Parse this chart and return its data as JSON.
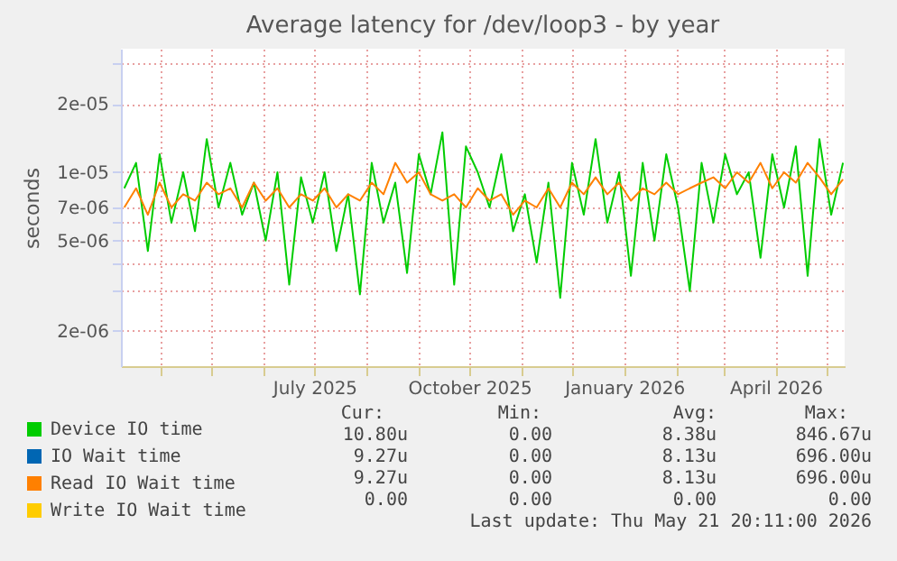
{
  "chart_data": {
    "type": "line",
    "title": "Average latency for /dev/loop3 - by year",
    "ylabel": "seconds",
    "log": "y",
    "x": [
      "2025-03-10",
      "2025-03-17",
      "2025-03-24",
      "2025-03-31",
      "2025-04-07",
      "2025-04-14",
      "2025-04-21",
      "2025-04-28",
      "2025-05-05",
      "2025-05-12",
      "2025-05-19",
      "2025-05-26",
      "2025-06-02",
      "2025-06-09",
      "2025-06-16",
      "2025-06-23",
      "2025-06-30",
      "2025-07-07",
      "2025-07-14",
      "2025-07-21",
      "2025-07-28",
      "2025-08-04",
      "2025-08-11",
      "2025-08-18",
      "2025-08-25",
      "2025-09-01",
      "2025-09-08",
      "2025-09-15",
      "2025-09-22",
      "2025-09-29",
      "2025-10-06",
      "2025-10-13",
      "2025-10-20",
      "2025-10-27",
      "2025-11-03",
      "2025-11-10",
      "2025-11-17",
      "2025-11-24",
      "2025-12-01",
      "2025-12-08",
      "2025-12-15",
      "2025-12-22",
      "2025-12-29",
      "2026-01-05",
      "2026-01-12",
      "2026-01-19",
      "2026-01-26",
      "2026-02-02",
      "2026-02-09",
      "2026-02-16",
      "2026-02-23",
      "2026-03-02",
      "2026-03-09",
      "2026-03-16",
      "2026-03-23",
      "2026-03-30",
      "2026-04-06",
      "2026-04-13",
      "2026-04-20",
      "2026-04-27",
      "2026-05-04",
      "2026-05-11"
    ],
    "series": [
      {
        "name": "Device IO time",
        "color": "#00cc00",
        "values": [
          8.5e-06,
          1.1e-05,
          4.5e-06,
          1.2e-05,
          6e-06,
          1e-05,
          5.5e-06,
          1.4e-05,
          7e-06,
          1.1e-05,
          6.5e-06,
          9e-06,
          5e-06,
          1e-05,
          3.2e-06,
          9.5e-06,
          6e-06,
          1e-05,
          4.5e-06,
          8e-06,
          2.9e-06,
          1.1e-05,
          6e-06,
          9e-06,
          3.6e-06,
          1.2e-05,
          8e-06,
          1.5e-05,
          3.2e-06,
          1.3e-05,
          1e-05,
          7e-06,
          1.2e-05,
          5.5e-06,
          8e-06,
          4e-06,
          9e-06,
          2.8e-06,
          1.1e-05,
          6.5e-06,
          1.4e-05,
          6e-06,
          1e-05,
          3.5e-06,
          1.1e-05,
          5e-06,
          1.2e-05,
          7e-06,
          3e-06,
          1.1e-05,
          6e-06,
          1.2e-05,
          8e-06,
          1e-05,
          4.2e-06,
          1.2e-05,
          7e-06,
          1.3e-05,
          3.5e-06,
          1.4e-05,
          6.5e-06,
          1.1e-05
        ]
      },
      {
        "name": "IO Wait time",
        "color": "#0066b3",
        "values": [
          null,
          null,
          null,
          null,
          null,
          null,
          null,
          null,
          null,
          null,
          null,
          null,
          null,
          null,
          null,
          null,
          null,
          null,
          null,
          null,
          null,
          null,
          null,
          null,
          null,
          null,
          null,
          null,
          null,
          null,
          null,
          null,
          null,
          null,
          null,
          null,
          null,
          null,
          null,
          null,
          null,
          null,
          null,
          null,
          null,
          null,
          null,
          null,
          null,
          null,
          null,
          null,
          null,
          null,
          null,
          null,
          null,
          null,
          null,
          null,
          null,
          null
        ]
      },
      {
        "name": "Read IO Wait time",
        "color": "#ff8000",
        "values": [
          7e-06,
          8.5e-06,
          6.5e-06,
          9e-06,
          7e-06,
          8e-06,
          7.5e-06,
          9e-06,
          8e-06,
          8.5e-06,
          7e-06,
          9e-06,
          7.5e-06,
          8.5e-06,
          7e-06,
          8e-06,
          7.5e-06,
          8.5e-06,
          7e-06,
          8e-06,
          7.5e-06,
          9e-06,
          8e-06,
          1.1e-05,
          9e-06,
          1e-05,
          8e-06,
          7.5e-06,
          8e-06,
          7e-06,
          8.5e-06,
          7.5e-06,
          8e-06,
          6.5e-06,
          7.5e-06,
          7e-06,
          8.5e-06,
          7e-06,
          9e-06,
          8e-06,
          9.5e-06,
          8e-06,
          9e-06,
          7.5e-06,
          8.5e-06,
          8e-06,
          9e-06,
          8e-06,
          8.5e-06,
          9e-06,
          9.5e-06,
          8.5e-06,
          1e-05,
          9e-06,
          1.1e-05,
          8.5e-06,
          1e-05,
          9e-06,
          1.1e-05,
          9.5e-06,
          8e-06,
          9.3e-06
        ]
      },
      {
        "name": "Write IO Wait time",
        "color": "#ffcc00",
        "values": [
          null,
          null,
          null,
          null,
          null,
          null,
          null,
          null,
          null,
          null,
          null,
          null,
          null,
          null,
          null,
          null,
          null,
          null,
          null,
          null,
          null,
          null,
          null,
          null,
          null,
          null,
          null,
          null,
          null,
          null,
          null,
          null,
          null,
          null,
          null,
          null,
          null,
          null,
          null,
          null,
          null,
          null,
          null,
          null,
          null,
          null,
          null,
          null,
          null,
          null,
          null,
          null,
          null,
          null,
          null,
          null,
          null,
          null,
          null,
          null,
          null,
          null
        ]
      }
    ],
    "xlim": [
      "2025-03-08",
      "2026-05-12"
    ],
    "xticks": [
      {
        "value": "2025-04-01",
        "label": null
      },
      {
        "value": "2025-05-01",
        "label": null
      },
      {
        "value": "2025-06-01",
        "label": null
      },
      {
        "value": "2025-07-01",
        "label": "July 2025"
      },
      {
        "value": "2025-08-01",
        "label": null
      },
      {
        "value": "2025-09-01",
        "label": null
      },
      {
        "value": "2025-10-01",
        "label": "October 2025"
      },
      {
        "value": "2025-11-01",
        "label": null
      },
      {
        "value": "2025-12-01",
        "label": null
      },
      {
        "value": "2026-01-01",
        "label": "January 2026"
      },
      {
        "value": "2026-02-01",
        "label": null
      },
      {
        "value": "2026-03-01",
        "label": null
      },
      {
        "value": "2026-04-01",
        "label": "April 2026"
      },
      {
        "value": "2026-05-01",
        "label": null
      }
    ],
    "ylim": [
      1.4e-06,
      3.5e-05
    ],
    "yticks": [
      {
        "value": 2e-06,
        "label": "2e-06"
      },
      {
        "value": 3e-06,
        "label": null
      },
      {
        "value": 4e-06,
        "label": null
      },
      {
        "value": 5e-06,
        "label": "5e-06"
      },
      {
        "value": 6e-06,
        "label": null
      },
      {
        "value": 7e-06,
        "label": "7e-06"
      },
      {
        "value": 1e-05,
        "label": "1e-05"
      },
      {
        "value": 2e-05,
        "label": "2e-05"
      },
      {
        "value": 3e-05,
        "label": null
      }
    ],
    "grid": true,
    "legend": "bottom left",
    "marker": "none",
    "line_style": "solid",
    "annotations": [
      "Cur:",
      "Min:",
      "Avg:",
      "Max:",
      "10.80u",
      "0.00",
      "8.38u",
      "846.67u",
      "9.27u",
      "0.00",
      "8.13u",
      "696.00u",
      "9.27u",
      "0.00",
      "8.13u",
      "696.00u",
      "0.00",
      "0.00",
      "0.00",
      "0.00",
      "Last update: Thu May 21 20:11:00 2026"
    ]
  }
}
